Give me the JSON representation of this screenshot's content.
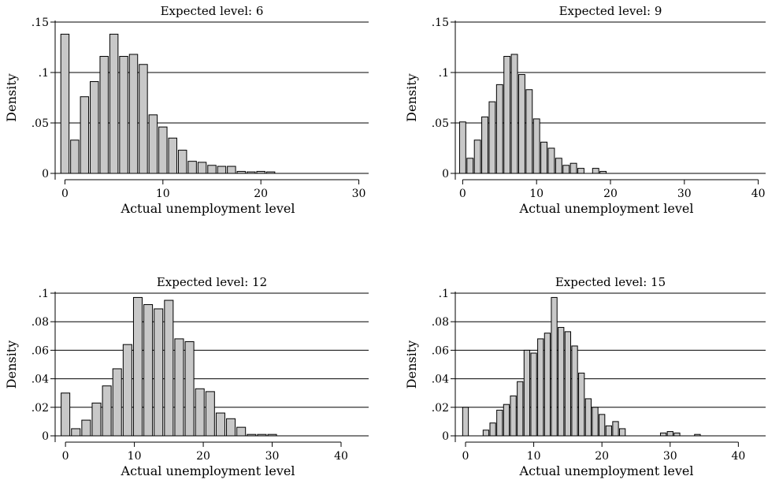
{
  "chart_data": [
    {
      "type": "bar",
      "title": "Expected level: 6",
      "xlabel": "Actual unemployment level",
      "ylabel": "Density",
      "xlim": [
        -1,
        31
      ],
      "ylim": [
        0,
        0.15
      ],
      "xticks": [
        0,
        10,
        20,
        30
      ],
      "xtick_labels": [
        "0",
        "10",
        "20",
        "30"
      ],
      "yticks": [
        0,
        0.05,
        0.1,
        0.15
      ],
      "ytick_labels": [
        "0",
        ".05",
        ".1",
        ".15"
      ],
      "grid": true,
      "bin_width": 1,
      "x": [
        0,
        1,
        2,
        3,
        4,
        5,
        6,
        7,
        8,
        9,
        10,
        11,
        12,
        13,
        14,
        15,
        16,
        17,
        18,
        19,
        20,
        21
      ],
      "values": [
        0.138,
        0.033,
        0.076,
        0.091,
        0.116,
        0.138,
        0.116,
        0.118,
        0.108,
        0.058,
        0.046,
        0.035,
        0.023,
        0.012,
        0.011,
        0.008,
        0.007,
        0.007,
        0.002,
        0.0015,
        0.002,
        0.0015
      ]
    },
    {
      "type": "bar",
      "title": "Expected level: 9",
      "xlabel": "Actual unemployment level",
      "ylabel": "Density",
      "xlim": [
        -1,
        41
      ],
      "ylim": [
        0,
        0.15
      ],
      "xticks": [
        0,
        10,
        20,
        30,
        40
      ],
      "xtick_labels": [
        "0",
        "10",
        "20",
        "30",
        "40"
      ],
      "yticks": [
        0,
        0.05,
        0.1,
        0.15
      ],
      "ytick_labels": [
        "0",
        ".05",
        ".1",
        ".15"
      ],
      "grid": true,
      "bin_width": 1,
      "x": [
        0,
        1,
        2,
        3,
        4,
        5,
        6,
        7,
        8,
        9,
        10,
        11,
        12,
        13,
        14,
        15,
        16,
        17,
        18,
        19,
        20,
        21
      ],
      "values": [
        0.051,
        0.015,
        0.033,
        0.056,
        0.071,
        0.088,
        0.116,
        0.118,
        0.098,
        0.083,
        0.054,
        0.031,
        0.025,
        0.015,
        0.008,
        0.01,
        0.005,
        0.0,
        0.005,
        0.002,
        0.0,
        0.0
      ]
    },
    {
      "type": "bar",
      "title": "Expected level: 12",
      "xlabel": "Actual unemployment level",
      "ylabel": "Density",
      "xlim": [
        -1.5,
        44
      ],
      "ylim": [
        0,
        0.1
      ],
      "xticks": [
        0,
        10,
        20,
        30,
        40
      ],
      "xtick_labels": [
        "0",
        "10",
        "20",
        "30",
        "40"
      ],
      "yticks": [
        0,
        0.02,
        0.04,
        0.06,
        0.08,
        0.1
      ],
      "ytick_labels": [
        "0",
        ".02",
        ".04",
        ".06",
        ".08",
        ".1"
      ],
      "grid": true,
      "bin_width": 1.5,
      "x": [
        0,
        1.5,
        3,
        4.5,
        6,
        7.5,
        9,
        10.5,
        12,
        13.5,
        15,
        16.5,
        18,
        19.5,
        21,
        22.5,
        24,
        25.5,
        27,
        28.5,
        30
      ],
      "values": [
        0.03,
        0.005,
        0.011,
        0.023,
        0.035,
        0.047,
        0.064,
        0.097,
        0.092,
        0.089,
        0.095,
        0.068,
        0.066,
        0.033,
        0.031,
        0.016,
        0.012,
        0.006,
        0.001,
        0.001,
        0.001
      ]
    },
    {
      "type": "bar",
      "title": "Expected level: 15",
      "xlabel": "Actual unemployment level",
      "ylabel": "Density",
      "xlim": [
        -1.5,
        44
      ],
      "ylim": [
        0,
        0.1
      ],
      "xticks": [
        0,
        10,
        20,
        30,
        40
      ],
      "xtick_labels": [
        "0",
        "10",
        "20",
        "30",
        "40"
      ],
      "yticks": [
        0,
        0.02,
        0.04,
        0.06,
        0.08,
        0.1
      ],
      "ytick_labels": [
        "0",
        ".02",
        ".04",
        ".06",
        ".08",
        ".1"
      ],
      "grid": true,
      "bin_width": 1,
      "x": [
        0,
        1,
        2,
        3,
        4,
        5,
        6,
        7,
        8,
        9,
        10,
        11,
        12,
        13,
        14,
        15,
        16,
        17,
        18,
        19,
        20,
        21,
        22,
        23,
        24,
        25,
        26,
        27,
        28,
        29,
        30,
        31,
        32,
        33,
        34
      ],
      "values": [
        0.02,
        0.0,
        0.0,
        0.004,
        0.009,
        0.018,
        0.022,
        0.028,
        0.038,
        0.06,
        0.058,
        0.068,
        0.072,
        0.097,
        0.076,
        0.073,
        0.063,
        0.044,
        0.026,
        0.02,
        0.015,
        0.007,
        0.01,
        0.005,
        0.0,
        0.0,
        0.0,
        0.0,
        0.0,
        0.002,
        0.003,
        0.002,
        0.0,
        0.0,
        0.001
      ]
    }
  ]
}
